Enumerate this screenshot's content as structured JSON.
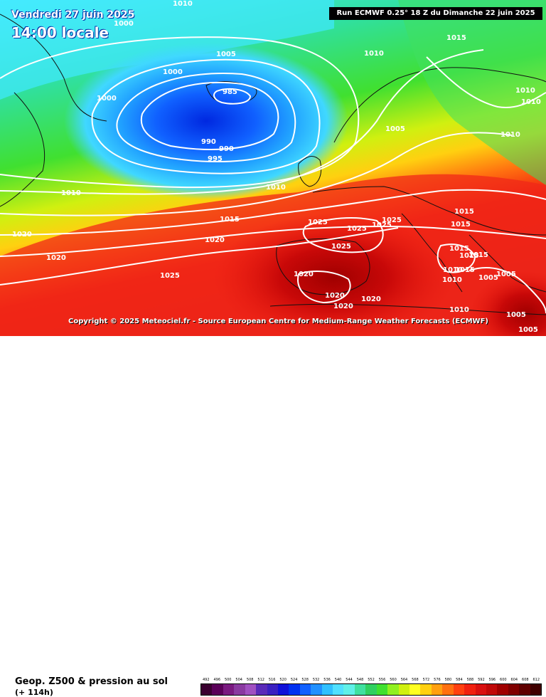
{
  "header": {
    "date_label": "Vendredi 27 juin 2025",
    "time_label": "14:00 locale",
    "run_info": "Run ECMWF 0.25° 18 Z du Dimanche 22 juin 2025"
  },
  "copyright": "Copyright © 2025 Meteociel.fr - Source European Centre for Medium-Range Weather Forecasts (ECMWF)",
  "legend": {
    "title": "Geop. Z500 & pression au sol",
    "subtitle": "(+ 114h)",
    "scale_values": [
      "492",
      "496",
      "500",
      "504",
      "508",
      "512",
      "516",
      "520",
      "524",
      "528",
      "532",
      "536",
      "540",
      "544",
      "548",
      "552",
      "556",
      "560",
      "564",
      "568",
      "572",
      "576",
      "580",
      "584",
      "588",
      "592",
      "596",
      "600",
      "604",
      "608",
      "612"
    ],
    "scale_colors": [
      "#3a0030",
      "#5a0058",
      "#7a1a80",
      "#8a3aa0",
      "#a050c0",
      "#5a2ab8",
      "#3a20c0",
      "#1010d8",
      "#0030f0",
      "#1060ff",
      "#2090ff",
      "#30c0ff",
      "#50e0ff",
      "#60f0e8",
      "#40e0a0",
      "#30d060",
      "#40e030",
      "#90f020",
      "#d0f010",
      "#ffff20",
      "#ffd010",
      "#ffa010",
      "#ff7010",
      "#ff4010",
      "#f02010",
      "#d81010",
      "#c00808",
      "#a00000",
      "#800000",
      "#600000",
      "#400000"
    ]
  },
  "isobar_labels": [
    "1010",
    "1005",
    "1000",
    "1000",
    "1000",
    "1005",
    "1010",
    "985",
    "990",
    "990",
    "995",
    "1010",
    "1010",
    "1010",
    "1015",
    "1020",
    "1020",
    "1015",
    "1025",
    "1020",
    "1025",
    "1020",
    "1025",
    "1025",
    "1025",
    "1025",
    "1020",
    "1020",
    "1020",
    "1015",
    "1015",
    "1015",
    "1015",
    "1010",
    "1005",
    "1005",
    "1005",
    "1010",
    "1010",
    "1005",
    "1010",
    "1010",
    "1015",
    "1015"
  ],
  "colors": {
    "low_core": "#0000c8",
    "high_core": "#b00000",
    "isobar": "#ffffff",
    "coast": "#111111"
  }
}
